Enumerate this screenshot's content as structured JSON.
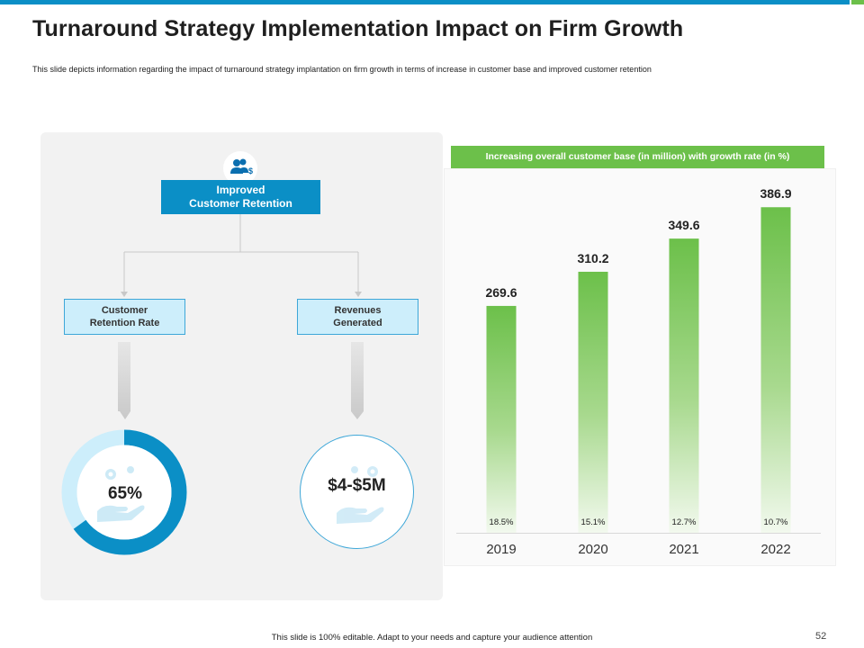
{
  "slide": {
    "title": "Turnaround Strategy Implementation Impact on Firm Growth",
    "subtitle": "This slide depicts information regarding the impact of turnaround strategy implantation on firm growth in terms of increase in customer base and improved customer retention",
    "footer": "This slide is 100% editable. Adapt to your needs and capture your audience attention",
    "page_number": "52"
  },
  "colors": {
    "blue": "#0b8fc6",
    "light_blue": "#cdeefb",
    "green": "#6cc04a",
    "panel_gray": "#f2f2f2"
  },
  "retention": {
    "icon": "users-dollar-icon",
    "main_line1": "Improved",
    "main_line2": "Customer Retention",
    "left_line1": "Customer",
    "left_line2": "Retention Rate",
    "right_line1": "Revenues",
    "right_line2": "Generated",
    "rate_value": "65%",
    "rate_fraction": 0.65,
    "revenue_value": "$4-$5M"
  },
  "chart_data": {
    "type": "bar",
    "title": "Increasing overall customer base (in million) with growth rate (in %)",
    "categories": [
      "2019",
      "2020",
      "2021",
      "2022"
    ],
    "values": [
      269.6,
      310.2,
      349.6,
      386.9
    ],
    "value_labels": [
      "269.6",
      "310.2",
      "349.6",
      "386.9"
    ],
    "growth_labels": [
      "18.5%",
      "15.1%",
      "12.7%",
      "10.7%"
    ],
    "ylim": [
      0,
      400
    ],
    "xlabel": "",
    "ylabel": ""
  }
}
